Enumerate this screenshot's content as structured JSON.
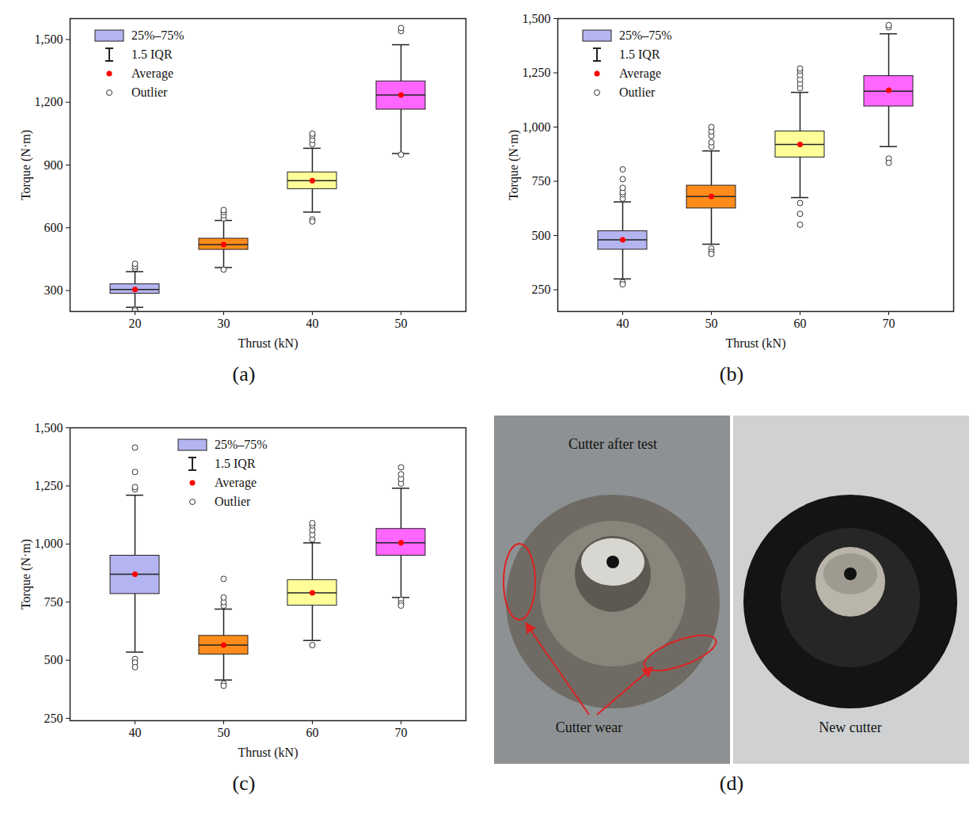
{
  "chart_data": [
    {
      "type": "box",
      "panel_label": "(a)",
      "x_label": "Thrust (kN)",
      "y_label": "Torque (N·m)",
      "categories": [
        20,
        30,
        40,
        50
      ],
      "colors": [
        "#b4b4f0",
        "#ff8c1a",
        "#ffff99",
        "#ff66ff"
      ],
      "boxes": [
        {
          "whisker_low": 220,
          "q1": 285,
          "median": 305,
          "q3": 330,
          "whisker_high": 390,
          "mean": 305,
          "outliers": [
            405,
            415,
            428,
            210,
            205
          ]
        },
        {
          "whisker_low": 410,
          "q1": 495,
          "median": 520,
          "q3": 548,
          "whisker_high": 635,
          "mean": 520,
          "outliers": [
            645,
            660,
            675,
            685,
            400
          ]
        },
        {
          "whisker_low": 675,
          "q1": 785,
          "median": 825,
          "q3": 865,
          "whisker_high": 980,
          "mean": 825,
          "outliers": [
            1000,
            1020,
            1040,
            1050,
            640,
            630
          ]
        },
        {
          "whisker_low": 955,
          "q1": 1165,
          "median": 1235,
          "q3": 1300,
          "whisker_high": 1475,
          "mean": 1235,
          "outliers": [
            1540,
            1555,
            950
          ]
        }
      ],
      "ylim": [
        200,
        1600
      ],
      "yticks": [
        300,
        600,
        900,
        1200,
        1500
      ],
      "grid": false,
      "legend": "upper left",
      "legend_labels": [
        "25%–75%",
        "1.5 IQR",
        "Average",
        "Outlier"
      ]
    },
    {
      "type": "box",
      "panel_label": "(b)",
      "x_label": "Thrust (kN)",
      "y_label": "Torque (N·m)",
      "categories": [
        40,
        50,
        60,
        70
      ],
      "colors": [
        "#b4b4f0",
        "#ff8c1a",
        "#ffff99",
        "#ff66ff"
      ],
      "boxes": [
        {
          "whisker_low": 300,
          "q1": 435,
          "median": 480,
          "q3": 520,
          "whisker_high": 655,
          "mean": 480,
          "outliers": [
            670,
            690,
            700,
            720,
            760,
            805,
            285,
            275
          ]
        },
        {
          "whisker_low": 460,
          "q1": 625,
          "median": 680,
          "q3": 730,
          "whisker_high": 890,
          "mean": 680,
          "outliers": [
            910,
            930,
            960,
            980,
            1000,
            440,
            425,
            415
          ]
        },
        {
          "whisker_low": 675,
          "q1": 860,
          "median": 920,
          "q3": 980,
          "whisker_high": 1160,
          "mean": 920,
          "outliers": [
            1180,
            1200,
            1220,
            1240,
            1260,
            1270,
            650,
            600,
            550
          ]
        },
        {
          "whisker_low": 910,
          "q1": 1095,
          "median": 1165,
          "q3": 1235,
          "whisker_high": 1430,
          "mean": 1170,
          "outliers": [
            1460,
            1470,
            855,
            835
          ]
        }
      ],
      "ylim": [
        150,
        1500
      ],
      "yticks": [
        250,
        500,
        750,
        1000,
        1250,
        1500
      ],
      "grid": false,
      "legend": "upper left",
      "legend_labels": [
        "25%–75%",
        "1.5 IQR",
        "Average",
        "Outlier"
      ]
    },
    {
      "type": "box",
      "panel_label": "(c)",
      "x_label": "Thrust (kN)",
      "y_label": "Torque (N·m)",
      "categories": [
        40,
        50,
        60,
        70
      ],
      "colors": [
        "#b4b4f0",
        "#ff8c1a",
        "#ffff99",
        "#ff66ff"
      ],
      "boxes": [
        {
          "whisker_low": 535,
          "q1": 785,
          "median": 870,
          "q3": 950,
          "whisker_high": 1210,
          "mean": 870,
          "outliers": [
            1235,
            1245,
            1310,
            1415,
            505,
            490,
            470
          ]
        },
        {
          "whisker_low": 415,
          "q1": 525,
          "median": 565,
          "q3": 605,
          "whisker_high": 720,
          "mean": 565,
          "outliers": [
            735,
            750,
            770,
            850,
            400,
            390
          ]
        },
        {
          "whisker_low": 585,
          "q1": 735,
          "median": 790,
          "q3": 845,
          "whisker_high": 1005,
          "mean": 790,
          "outliers": [
            1020,
            1040,
            1060,
            1080,
            1090,
            565
          ]
        },
        {
          "whisker_low": 770,
          "q1": 950,
          "median": 1005,
          "q3": 1065,
          "whisker_high": 1240,
          "mean": 1005,
          "outliers": [
            1260,
            1280,
            1300,
            1330,
            760,
            745,
            735
          ]
        }
      ],
      "ylim": [
        240,
        1500
      ],
      "yticks": [
        250,
        500,
        750,
        1000,
        1250,
        1500
      ],
      "grid": false,
      "legend": "upper left",
      "legend_labels": [
        "25%–75%",
        "1.5 IQR",
        "Average",
        "Outlier"
      ]
    }
  ],
  "photo": {
    "panel_label": "(d)",
    "left_title": "Cutter after test",
    "annotation": "Cutter wear",
    "right_title": "New cutter"
  }
}
